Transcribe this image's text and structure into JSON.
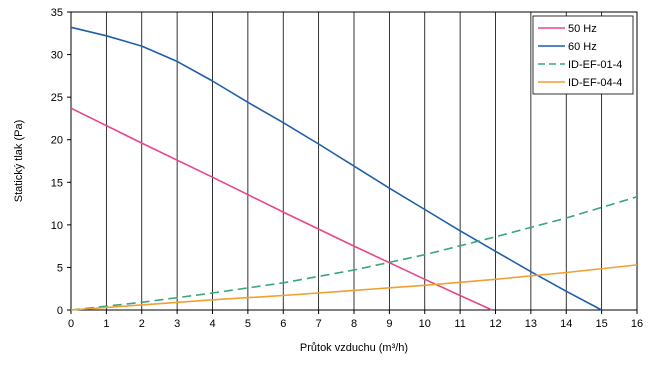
{
  "chart_data": {
    "type": "line",
    "xlabel": "Průtok vzduchu (m³/h)",
    "ylabel": "Statický tlak (Pa)",
    "xlim": [
      0,
      16
    ],
    "ylim": [
      0,
      35
    ],
    "xticks": [
      "0",
      "1",
      "2",
      "3",
      "4",
      "5",
      "6",
      "7",
      "8",
      "9",
      "10",
      "11",
      "12",
      "13",
      "14",
      "15",
      "16"
    ],
    "yticks": [
      "0",
      "5",
      "10",
      "15",
      "20",
      "25",
      "30",
      "35"
    ],
    "grid": "vertical",
    "legend_position": "top-right",
    "series": [
      {
        "name": "50 Hz",
        "color": "#e8468c",
        "dash": "solid",
        "points": [
          [
            0,
            23.7
          ],
          [
            2,
            19.6
          ],
          [
            4,
            15.6
          ],
          [
            6,
            11.5
          ],
          [
            8,
            7.5
          ],
          [
            10,
            3.6
          ],
          [
            11,
            1.7
          ],
          [
            11.9,
            0
          ]
        ]
      },
      {
        "name": "60 Hz",
        "color": "#1f5fa8",
        "dash": "solid",
        "points": [
          [
            0,
            33.2
          ],
          [
            1,
            32.2
          ],
          [
            2,
            31.0
          ],
          [
            3,
            29.2
          ],
          [
            4,
            26.9
          ],
          [
            5,
            24.4
          ],
          [
            6,
            22.0
          ],
          [
            7,
            19.5
          ],
          [
            8,
            16.9
          ],
          [
            9,
            14.3
          ],
          [
            10,
            11.8
          ],
          [
            11,
            9.3
          ],
          [
            12,
            6.9
          ],
          [
            13,
            4.5
          ],
          [
            14,
            2.2
          ],
          [
            15,
            0
          ]
        ]
      },
      {
        "name": "ID-EF-01-4",
        "color": "#3aa67a",
        "dash": "dashed",
        "points": [
          [
            0,
            0
          ],
          [
            2,
            0.9
          ],
          [
            4,
            2.0
          ],
          [
            6,
            3.2
          ],
          [
            8,
            4.7
          ],
          [
            10,
            6.5
          ],
          [
            12,
            8.6
          ],
          [
            14,
            10.8
          ],
          [
            16,
            13.3
          ]
        ]
      },
      {
        "name": "ID-EF-04-4",
        "color": "#f0a030",
        "dash": "solid",
        "points": [
          [
            0,
            0
          ],
          [
            2,
            0.6
          ],
          [
            4,
            1.2
          ],
          [
            6,
            1.7
          ],
          [
            8,
            2.3
          ],
          [
            10,
            2.9
          ],
          [
            12,
            3.6
          ],
          [
            14,
            4.4
          ],
          [
            16,
            5.3
          ]
        ]
      }
    ]
  }
}
